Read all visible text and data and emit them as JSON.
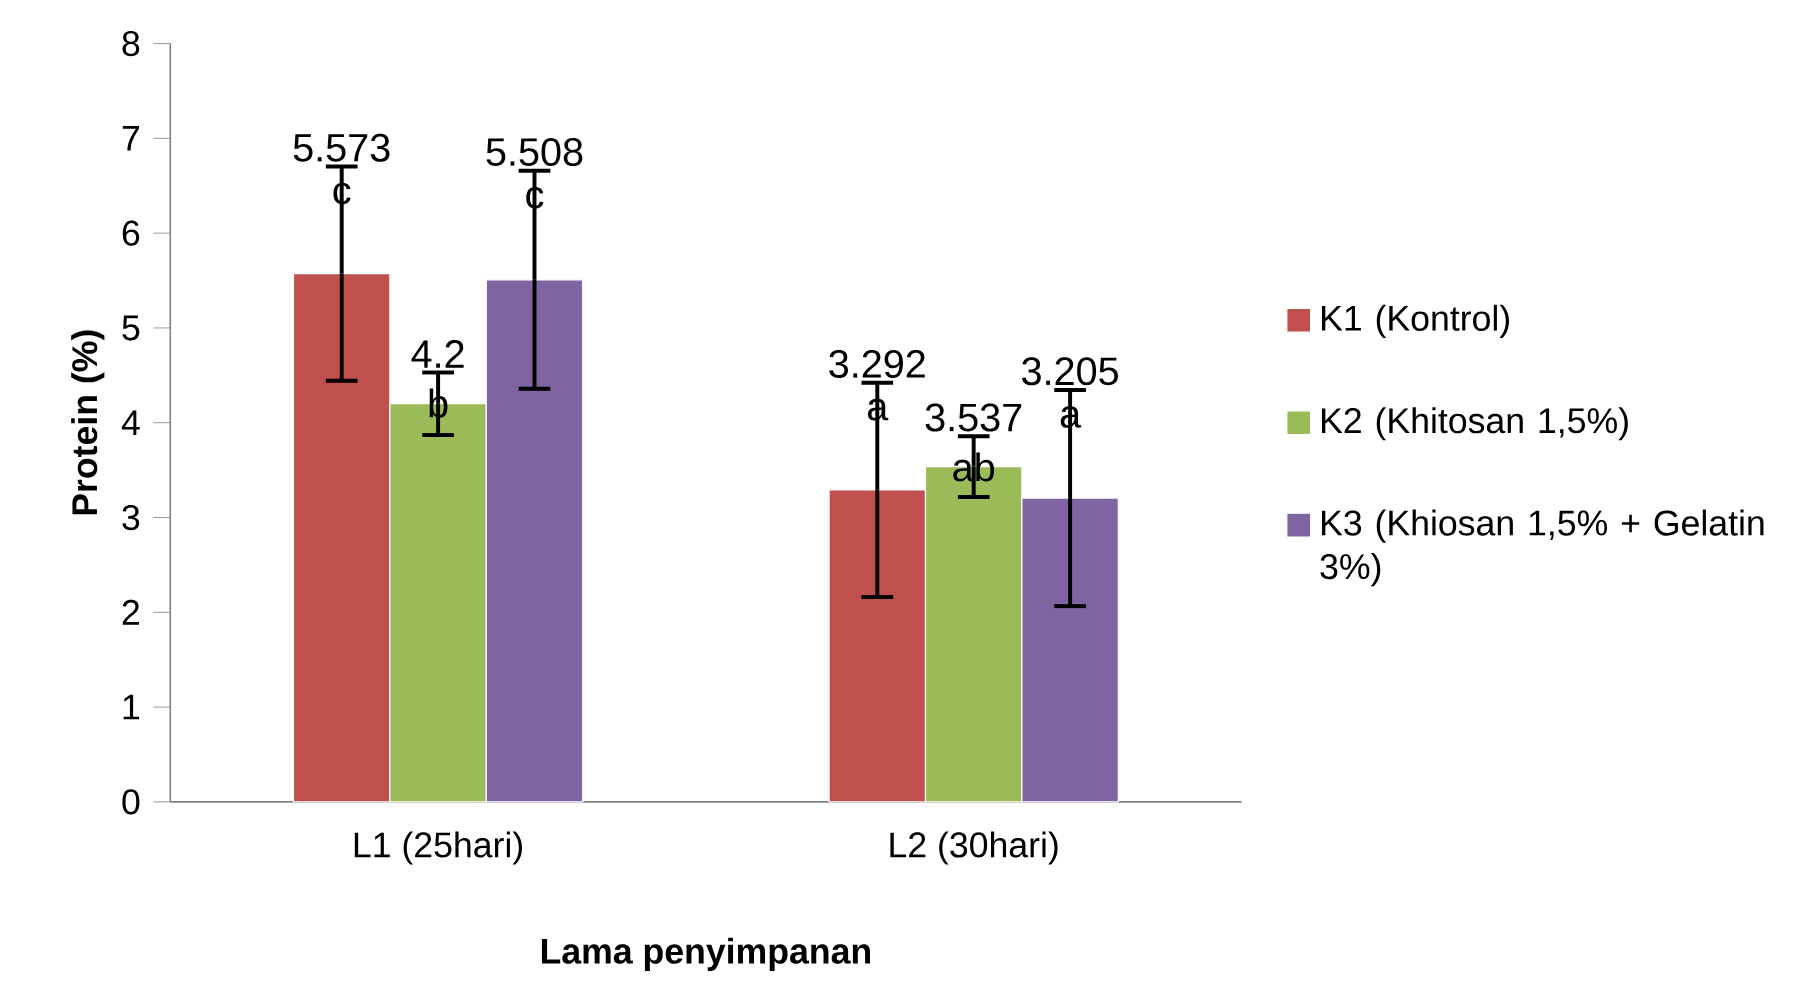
{
  "chart_data": {
    "type": "bar",
    "xlabel": "Lama penyimpanan",
    "ylabel": "Protein (%)",
    "categories": [
      "L1 (25hari)",
      "L2 (30hari)"
    ],
    "series": [
      {
        "name": "K1 (Kontrol)",
        "color": "#c0504d",
        "values": [
          5.573,
          3.292
        ],
        "errors": [
          1.13,
          1.13
        ]
      },
      {
        "name": "K2 (Khitosan 1,5%)",
        "color": "#9bbb59",
        "values": [
          4.2,
          3.537
        ],
        "errors": [
          0.33,
          0.32
        ]
      },
      {
        "name": "K3 (Khiosan 1,5% + Gelatin 3%)",
        "color": "#8064a2",
        "values": [
          5.508,
          3.205
        ],
        "errors": [
          1.15,
          1.14
        ]
      }
    ],
    "ylim": [
      0,
      8
    ],
    "yticks": [
      0,
      1,
      2,
      3,
      4,
      5,
      6,
      7,
      8
    ],
    "grid": false,
    "legend": "right",
    "data_labels": true,
    "annotations": [
      "c",
      "b",
      "c",
      "a",
      "ab",
      "a"
    ]
  }
}
